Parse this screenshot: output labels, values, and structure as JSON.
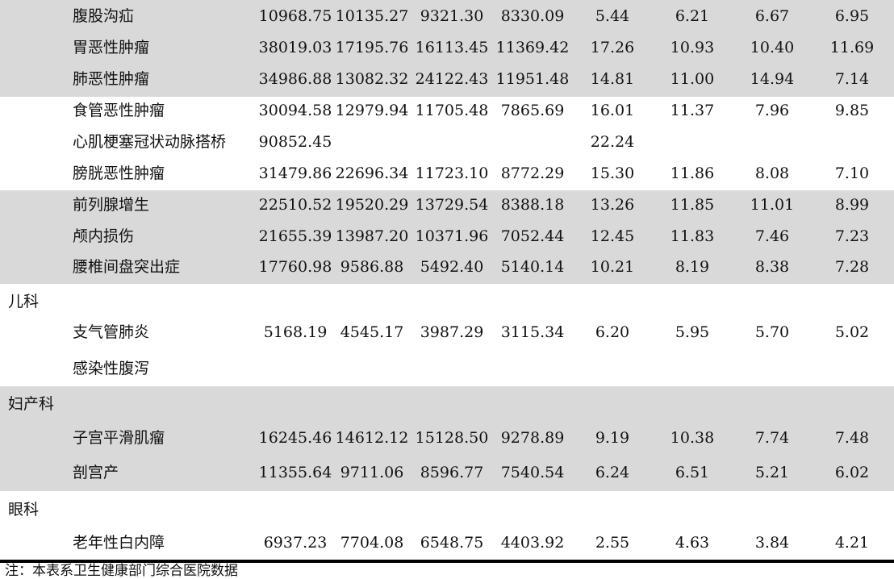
{
  "rows": [
    {
      "type": "item",
      "name": "腹股沟疝",
      "vals": [
        "10968.75",
        "10135.27",
        "9321.30",
        "8330.09",
        "5.44",
        "6.21",
        "6.67",
        "6.95"
      ]
    },
    {
      "type": "item",
      "name": "胃恶性肿瘤",
      "vals": [
        "38019.03",
        "17195.76",
        "16113.45",
        "11369.42",
        "17.26",
        "10.93",
        "10.40",
        "11.69"
      ]
    },
    {
      "type": "item",
      "name": "肺恶性肿瘤",
      "vals": [
        "34986.88",
        "13082.32",
        "24122.43",
        "11951.48",
        "14.81",
        "11.00",
        "14.94",
        "7.14"
      ]
    },
    {
      "type": "item",
      "name": "食管恶性肿瘤",
      "vals": [
        "30094.58",
        "12979.94",
        "11705.48",
        "7865.69",
        "16.01",
        "11.37",
        "7.96",
        "9.85"
      ]
    },
    {
      "type": "item",
      "name": "心肌梗塞冠状动脉搭桥",
      "vals": [
        "90852.45",
        "",
        "",
        "",
        "22.24",
        "",
        "",
        ""
      ]
    },
    {
      "type": "item",
      "name": "膀胱恶性肿瘤",
      "vals": [
        "31479.86",
        "22696.34",
        "11723.10",
        "8772.29",
        "15.30",
        "11.86",
        "8.08",
        "7.10"
      ]
    },
    {
      "type": "item",
      "name": "前列腺增生",
      "vals": [
        "22510.52",
        "19520.29",
        "13729.54",
        "8388.18",
        "13.26",
        "11.85",
        "11.01",
        "8.99"
      ]
    },
    {
      "type": "item",
      "name": "颅内损伤",
      "vals": [
        "21655.39",
        "13987.20",
        "10371.96",
        "7052.44",
        "12.45",
        "11.83",
        "7.46",
        "7.23"
      ]
    },
    {
      "type": "item",
      "name": "腰椎间盘突出症",
      "vals": [
        "17760.98",
        "9586.88",
        "5492.40",
        "5140.14",
        "10.21",
        "8.19",
        "8.38",
        "7.28"
      ]
    },
    {
      "type": "cat",
      "name": "儿科"
    },
    {
      "type": "item",
      "name": "支气管肺炎",
      "vals": [
        "5168.19",
        "4545.17",
        "3987.29",
        "3115.34",
        "6.20",
        "5.95",
        "5.70",
        "5.02"
      ]
    },
    {
      "type": "item",
      "name": "感染性腹泻",
      "vals": [
        "",
        "",
        "",
        "",
        "",
        "",
        "",
        ""
      ]
    },
    {
      "type": "cat",
      "name": "妇产科"
    },
    {
      "type": "item",
      "name": "子宫平滑肌瘤",
      "vals": [
        "16245.46",
        "14612.12",
        "15128.50",
        "9278.89",
        "9.19",
        "10.38",
        "7.74",
        "7.48"
      ]
    },
    {
      "type": "item",
      "name": "剖宫产",
      "vals": [
        "11355.64",
        "9711.06",
        "8596.77",
        "7540.54",
        "6.24",
        "6.51",
        "5.21",
        "6.02"
      ]
    },
    {
      "type": "cat",
      "name": "眼科"
    },
    {
      "type": "item",
      "name": "老年性白内障",
      "vals": [
        "6937.23",
        "7704.08",
        "6548.75",
        "4403.92",
        "2.55",
        "4.63",
        "3.84",
        "4.21"
      ]
    }
  ],
  "footnote": "注：本表系卫生健康部门综合医院数据"
}
